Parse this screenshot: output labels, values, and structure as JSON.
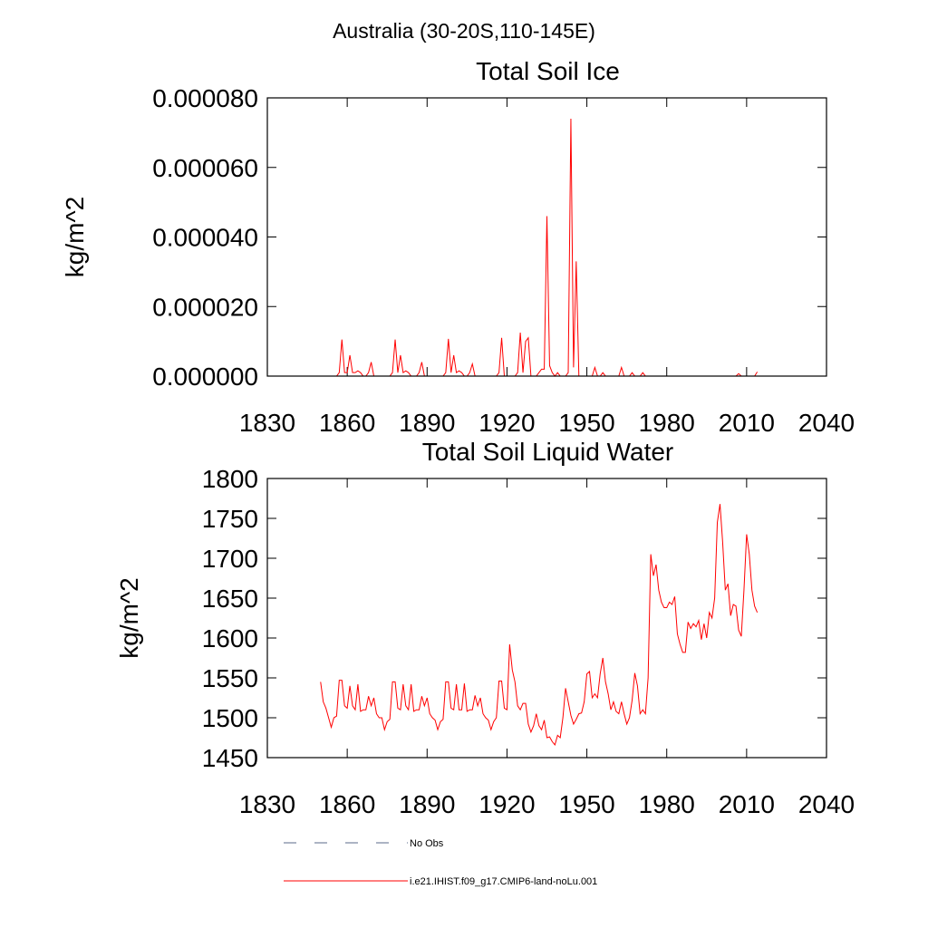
{
  "title": "Australia (30-20S,110-145E)",
  "legend": [
    {
      "name": "No Obs",
      "color": "#5a6a8a",
      "dashed": true
    },
    {
      "name": "i.e21.IHIST.f09_g17.CMIP6-land-noLu.001",
      "color": "#ff0000",
      "dashed": false
    }
  ],
  "chart_data": [
    {
      "type": "line",
      "title": "Total Soil Ice",
      "ylabel": "kg/m^2",
      "xlim": [
        1830,
        2040
      ],
      "xticks": [
        1830,
        1860,
        1890,
        1920,
        1950,
        1980,
        2010,
        2040
      ],
      "ylim": [
        0,
        8e-05
      ],
      "yticks": [
        {
          "value": 0,
          "label": "0.000000"
        },
        {
          "value": 2e-05,
          "label": "0.000020"
        },
        {
          "value": 4e-05,
          "label": "0.000040"
        },
        {
          "value": 6e-05,
          "label": "0.000060"
        },
        {
          "value": 8e-05,
          "label": "0.000080"
        }
      ],
      "x": [
        1850,
        1851,
        1852,
        1853,
        1854,
        1855,
        1856,
        1857,
        1858,
        1859,
        1860,
        1861,
        1862,
        1863,
        1864,
        1865,
        1866,
        1867,
        1868,
        1869,
        1870,
        1871,
        1872,
        1873,
        1874,
        1875,
        1876,
        1877,
        1878,
        1879,
        1880,
        1881,
        1882,
        1883,
        1884,
        1885,
        1886,
        1887,
        1888,
        1889,
        1890,
        1891,
        1892,
        1893,
        1894,
        1895,
        1896,
        1897,
        1898,
        1899,
        1900,
        1901,
        1902,
        1903,
        1904,
        1905,
        1906,
        1907,
        1908,
        1909,
        1910,
        1911,
        1912,
        1913,
        1914,
        1915,
        1916,
        1917,
        1918,
        1919,
        1920,
        1921,
        1922,
        1923,
        1924,
        1925,
        1926,
        1927,
        1928,
        1929,
        1930,
        1931,
        1932,
        1933,
        1934,
        1935,
        1936,
        1937,
        1938,
        1939,
        1940,
        1941,
        1942,
        1943,
        1944,
        1945,
        1946,
        1947,
        1948,
        1949,
        1950,
        1951,
        1952,
        1953,
        1954,
        1955,
        1956,
        1957,
        1958,
        1959,
        1960,
        1961,
        1962,
        1963,
        1964,
        1965,
        1966,
        1967,
        1968,
        1969,
        1970,
        1971,
        1972,
        1973,
        1974,
        1975,
        1976,
        1977,
        1978,
        1979,
        1980,
        1981,
        1982,
        1983,
        1984,
        1985,
        1986,
        1987,
        1988,
        1989,
        1990,
        1991,
        1992,
        1993,
        1994,
        1995,
        1996,
        1997,
        1998,
        1999,
        2000,
        2001,
        2002,
        2003,
        2004,
        2005,
        2006,
        2007,
        2008,
        2009,
        2010,
        2011,
        2012,
        2013,
        2014
      ],
      "series": [
        {
          "name": "i.e21.IHIST.f09_g17.CMIP6-land-noLu.001",
          "color": "#ff0000",
          "values": [
            0,
            0,
            0,
            0,
            0,
            0,
            0,
            1e-06,
            1.05e-05,
            1e-06,
            1e-06,
            6e-06,
            1e-06,
            1e-06,
            1.5e-06,
            1e-06,
            0,
            0,
            1e-06,
            4e-06,
            0,
            0,
            0,
            0,
            0,
            0,
            0,
            1e-06,
            1.05e-05,
            1e-06,
            6e-06,
            1e-06,
            1.5e-06,
            1e-06,
            0,
            0,
            0,
            1e-06,
            4e-06,
            0,
            0,
            0,
            0,
            0,
            0,
            0,
            0,
            1e-06,
            1.07e-05,
            1e-06,
            6e-06,
            1e-06,
            1.5e-06,
            1e-06,
            0,
            0,
            1e-06,
            3.5e-06,
            0,
            0,
            0,
            0,
            0,
            0,
            0,
            0,
            0,
            1e-06,
            1.1e-05,
            0,
            0,
            0,
            0,
            0,
            1e-06,
            1.25e-05,
            1e-06,
            1e-05,
            1.1e-05,
            0,
            0,
            0,
            1e-06,
            2e-06,
            2e-06,
            4.6e-05,
            3e-06,
            1e-06,
            0,
            1e-06,
            0,
            0,
            0,
            1e-06,
            7.4e-05,
            2.5e-06,
            3.3e-05,
            0,
            0,
            0,
            0,
            0,
            0,
            2.5e-06,
            0,
            0,
            1e-06,
            0,
            0,
            0,
            0,
            0,
            0,
            2.5e-06,
            0,
            0,
            0,
            1e-06,
            0,
            0,
            0,
            1e-06,
            0,
            0,
            0,
            0,
            0,
            0,
            0,
            0,
            0,
            0,
            0,
            0,
            0,
            0,
            0,
            0,
            0,
            0,
            0,
            0,
            0,
            0,
            0,
            0,
            0,
            0,
            0,
            0,
            0,
            0,
            0,
            0,
            0,
            0,
            0,
            7e-07,
            0,
            0,
            0,
            0,
            0,
            0,
            1.2e-06
          ]
        }
      ]
    },
    {
      "type": "line",
      "title": "Total Soil Liquid Water",
      "ylabel": "kg/m^2",
      "xlim": [
        1830,
        2040
      ],
      "xticks": [
        1830,
        1860,
        1890,
        1920,
        1950,
        1980,
        2010,
        2040
      ],
      "ylim": [
        1450,
        1800
      ],
      "yticks": [
        1450,
        1500,
        1550,
        1600,
        1650,
        1700,
        1750,
        1800
      ],
      "x": [
        1850,
        1851,
        1852,
        1853,
        1854,
        1855,
        1856,
        1857,
        1858,
        1859,
        1860,
        1861,
        1862,
        1863,
        1864,
        1865,
        1866,
        1867,
        1868,
        1869,
        1870,
        1871,
        1872,
        1873,
        1874,
        1875,
        1876,
        1877,
        1878,
        1879,
        1880,
        1881,
        1882,
        1883,
        1884,
        1885,
        1886,
        1887,
        1888,
        1889,
        1890,
        1891,
        1892,
        1893,
        1894,
        1895,
        1896,
        1897,
        1898,
        1899,
        1900,
        1901,
        1902,
        1903,
        1904,
        1905,
        1906,
        1907,
        1908,
        1909,
        1910,
        1911,
        1912,
        1913,
        1914,
        1915,
        1916,
        1917,
        1918,
        1919,
        1920,
        1921,
        1922,
        1923,
        1924,
        1925,
        1926,
        1927,
        1928,
        1929,
        1930,
        1931,
        1932,
        1933,
        1934,
        1935,
        1936,
        1937,
        1938,
        1939,
        1940,
        1941,
        1942,
        1943,
        1944,
        1945,
        1946,
        1947,
        1948,
        1949,
        1950,
        1951,
        1952,
        1953,
        1954,
        1955,
        1956,
        1957,
        1958,
        1959,
        1960,
        1961,
        1962,
        1963,
        1964,
        1965,
        1966,
        1967,
        1968,
        1969,
        1970,
        1971,
        1972,
        1973,
        1974,
        1975,
        1976,
        1977,
        1978,
        1979,
        1980,
        1981,
        1982,
        1983,
        1984,
        1985,
        1986,
        1987,
        1988,
        1989,
        1990,
        1991,
        1992,
        1993,
        1994,
        1995,
        1996,
        1997,
        1998,
        1999,
        2000,
        2001,
        2002,
        2003,
        2004,
        2005,
        2006,
        2007,
        2008,
        2009,
        2010,
        2011,
        2012,
        2013,
        2014
      ],
      "series": [
        {
          "name": "i.e21.IHIST.f09_g17.CMIP6-land-noLu.001",
          "color": "#ff0000",
          "values": [
            1545,
            1520,
            1512,
            1500,
            1488,
            1500,
            1502,
            1547,
            1547,
            1515,
            1512,
            1540,
            1515,
            1510,
            1542,
            1508,
            1510,
            1510,
            1527,
            1515,
            1525,
            1505,
            1500,
            1500,
            1485,
            1495,
            1498,
            1545,
            1545,
            1512,
            1510,
            1542,
            1515,
            1510,
            1542,
            1508,
            1510,
            1510,
            1527,
            1515,
            1525,
            1505,
            1500,
            1497,
            1485,
            1495,
            1498,
            1545,
            1545,
            1512,
            1510,
            1542,
            1510,
            1510,
            1543,
            1508,
            1510,
            1510,
            1528,
            1515,
            1525,
            1505,
            1500,
            1497,
            1485,
            1495,
            1500,
            1546,
            1546,
            1512,
            1510,
            1592,
            1560,
            1545,
            1515,
            1510,
            1518,
            1518,
            1492,
            1482,
            1490,
            1505,
            1490,
            1485,
            1497,
            1475,
            1476,
            1470,
            1466,
            1478,
            1475,
            1500,
            1537,
            1520,
            1503,
            1492,
            1498,
            1505,
            1506,
            1520,
            1555,
            1558,
            1525,
            1530,
            1525,
            1555,
            1575,
            1545,
            1530,
            1510,
            1520,
            1508,
            1505,
            1520,
            1505,
            1492,
            1500,
            1522,
            1556,
            1540,
            1505,
            1510,
            1505,
            1550,
            1705,
            1678,
            1692,
            1660,
            1645,
            1638,
            1638,
            1645,
            1642,
            1652,
            1605,
            1592,
            1582,
            1582,
            1620,
            1612,
            1618,
            1614,
            1622,
            1598,
            1618,
            1600,
            1632,
            1625,
            1650,
            1745,
            1768,
            1720,
            1660,
            1668,
            1628,
            1642,
            1640,
            1610,
            1602,
            1660,
            1730,
            1705,
            1660,
            1640,
            1632
          ]
        }
      ]
    }
  ]
}
